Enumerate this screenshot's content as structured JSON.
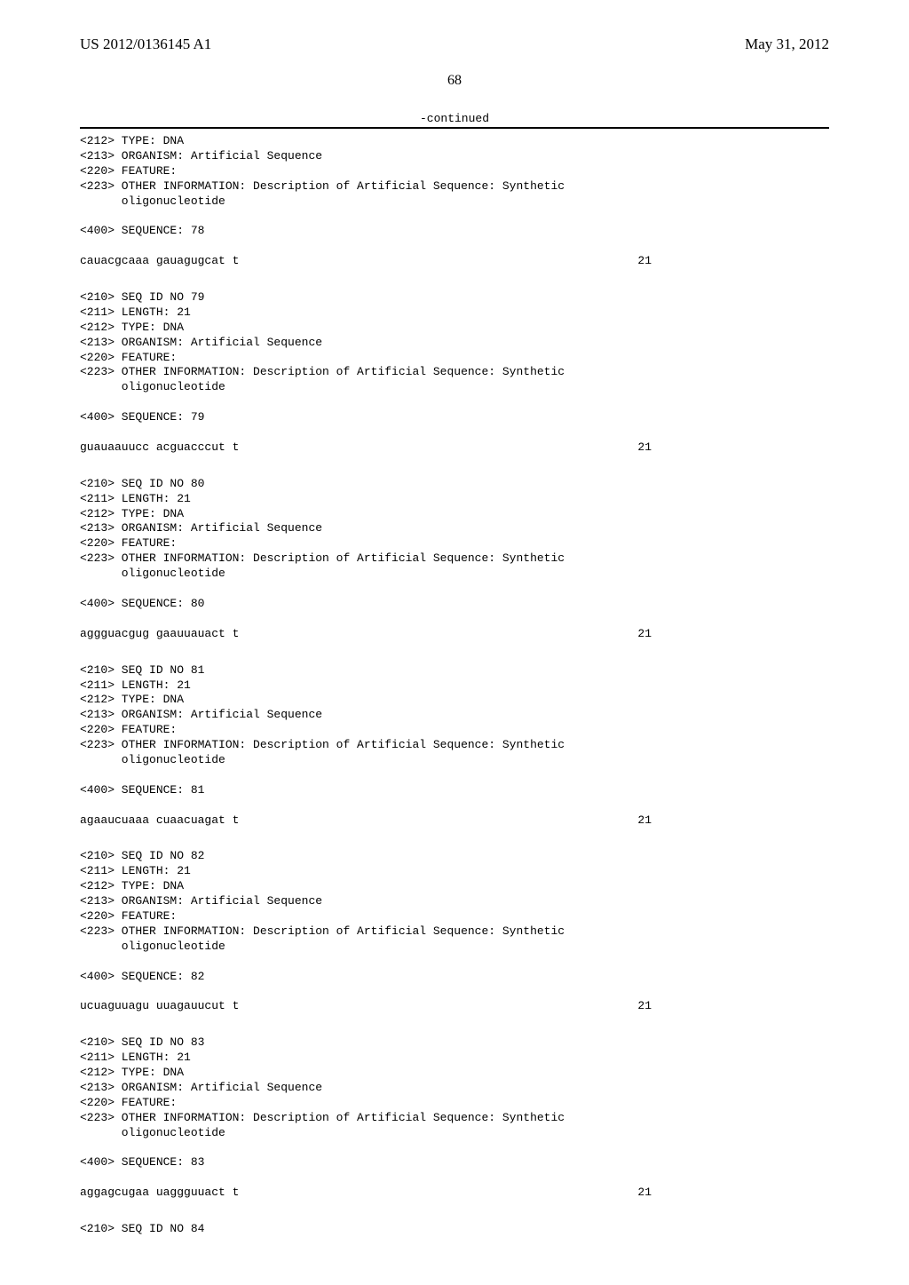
{
  "header": {
    "left": "US 2012/0136145 A1",
    "right": "May 31, 2012"
  },
  "page_number": "68",
  "continued_label": "-continued",
  "entries": [
    {
      "lines": [
        "<212> TYPE: DNA",
        "<213> ORGANISM: Artificial Sequence",
        "<220> FEATURE:",
        "<223> OTHER INFORMATION: Description of Artificial Sequence: Synthetic",
        "      oligonucleotide",
        "",
        "<400> SEQUENCE: 78"
      ],
      "seq_text": "cauacgcaaa gauagugcat t",
      "seq_len": "21"
    },
    {
      "lines": [
        "<210> SEQ ID NO 79",
        "<211> LENGTH: 21",
        "<212> TYPE: DNA",
        "<213> ORGANISM: Artificial Sequence",
        "<220> FEATURE:",
        "<223> OTHER INFORMATION: Description of Artificial Sequence: Synthetic",
        "      oligonucleotide",
        "",
        "<400> SEQUENCE: 79"
      ],
      "seq_text": "guauaauucc acguacccut t",
      "seq_len": "21"
    },
    {
      "lines": [
        "<210> SEQ ID NO 80",
        "<211> LENGTH: 21",
        "<212> TYPE: DNA",
        "<213> ORGANISM: Artificial Sequence",
        "<220> FEATURE:",
        "<223> OTHER INFORMATION: Description of Artificial Sequence: Synthetic",
        "      oligonucleotide",
        "",
        "<400> SEQUENCE: 80"
      ],
      "seq_text": "aggguacgug gaauuauact t",
      "seq_len": "21"
    },
    {
      "lines": [
        "<210> SEQ ID NO 81",
        "<211> LENGTH: 21",
        "<212> TYPE: DNA",
        "<213> ORGANISM: Artificial Sequence",
        "<220> FEATURE:",
        "<223> OTHER INFORMATION: Description of Artificial Sequence: Synthetic",
        "      oligonucleotide",
        "",
        "<400> SEQUENCE: 81"
      ],
      "seq_text": "agaaucuaaa cuaacuagat t",
      "seq_len": "21"
    },
    {
      "lines": [
        "<210> SEQ ID NO 82",
        "<211> LENGTH: 21",
        "<212> TYPE: DNA",
        "<213> ORGANISM: Artificial Sequence",
        "<220> FEATURE:",
        "<223> OTHER INFORMATION: Description of Artificial Sequence: Synthetic",
        "      oligonucleotide",
        "",
        "<400> SEQUENCE: 82"
      ],
      "seq_text": "ucuaguuagu uuagauucut t",
      "seq_len": "21"
    },
    {
      "lines": [
        "<210> SEQ ID NO 83",
        "<211> LENGTH: 21",
        "<212> TYPE: DNA",
        "<213> ORGANISM: Artificial Sequence",
        "<220> FEATURE:",
        "<223> OTHER INFORMATION: Description of Artificial Sequence: Synthetic",
        "      oligonucleotide",
        "",
        "<400> SEQUENCE: 83"
      ],
      "seq_text": "aggagcugaa uaggguuact t",
      "seq_len": "21"
    },
    {
      "lines": [
        "<210> SEQ ID NO 84"
      ],
      "seq_text": "",
      "seq_len": ""
    }
  ]
}
